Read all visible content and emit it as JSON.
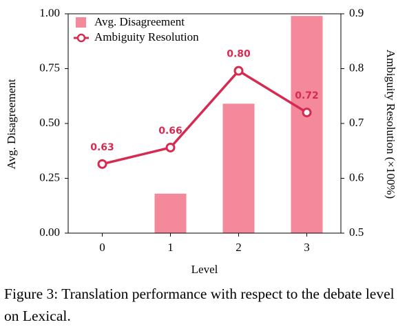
{
  "chart_data": {
    "type": "bar",
    "categories": [
      "0",
      "1",
      "2",
      "3"
    ],
    "x_label": "Level",
    "y_label": "Avg. Disagreement",
    "y2_label": "Ambiguity Resolution (×100%)",
    "ylim": [
      0,
      1
    ],
    "yticks": [
      {
        "value": 0,
        "label": "0.00"
      },
      {
        "value": 0.25,
        "label": "0.25"
      },
      {
        "value": 0.5,
        "label": "0.50"
      },
      {
        "value": 0.75,
        "label": "0.75"
      },
      {
        "value": 1,
        "label": "1.00"
      }
    ],
    "y2lim": [
      0.5,
      0.9
    ],
    "y2ticks": [
      0.5,
      0.6,
      0.7,
      0.8,
      0.9
    ],
    "legend": "upper-left",
    "series": [
      {
        "name": "Avg. Disagreement",
        "type": "bar",
        "color": "#f4899c",
        "values": [
          0,
          0.18,
          0.59,
          0.99
        ]
      },
      {
        "name": "Ambiguity Resolution",
        "type": "line",
        "axis": "y2",
        "color": "#d72a50",
        "values": [
          0.626,
          0.656,
          0.796,
          0.72
        ],
        "value_labels": [
          "0.63",
          "0.66",
          "0.80",
          "0.72"
        ]
      }
    ],
    "caption": "Figure 3: Translation performance with respect to the debate level on Lexical."
  }
}
